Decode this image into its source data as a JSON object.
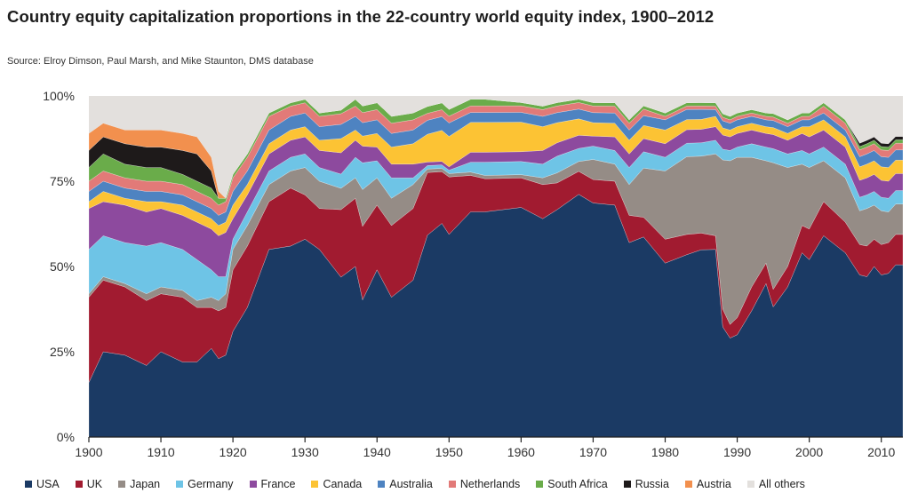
{
  "title": "Country equity capitalization proportions in the 22-country world equity index, 1900–2012",
  "source": "Source: Elroy Dimson, Paul Marsh, and Mike Staunton, DMS database",
  "chart_data": {
    "type": "area",
    "stacked": true,
    "title": "Country equity capitalization proportions in the 22-country world equity index, 1900–2012",
    "xlabel": "",
    "ylabel": "",
    "xlim": [
      1900,
      2013
    ],
    "ylim": [
      0,
      100
    ],
    "x_ticks": [
      1900,
      1910,
      1920,
      1930,
      1940,
      1950,
      1960,
      1970,
      1980,
      1990,
      2000,
      2010
    ],
    "x_tick_labels": [
      "1900",
      "1910",
      "1920",
      "1930",
      "1940",
      "1950",
      "1960",
      "1970",
      "1980",
      "1990",
      "2000",
      "2010"
    ],
    "y_ticks": [
      0,
      25,
      50,
      75,
      100
    ],
    "y_tick_labels": [
      "0%",
      "25%",
      "50%",
      "75%",
      "100%"
    ],
    "grid": false,
    "legend_position": "bottom",
    "x": [
      1900,
      1902,
      1905,
      1908,
      1910,
      1913,
      1915,
      1917,
      1918,
      1919,
      1920,
      1922,
      1925,
      1928,
      1930,
      1932,
      1935,
      1937,
      1938,
      1940,
      1942,
      1945,
      1947,
      1949,
      1950,
      1953,
      1955,
      1960,
      1963,
      1965,
      1968,
      1970,
      1973,
      1975,
      1977,
      1980,
      1983,
      1985,
      1987,
      1988,
      1989,
      1990,
      1992,
      1994,
      1995,
      1997,
      1999,
      2000,
      2002,
      2005,
      2007,
      2008,
      2009,
      2010,
      2011,
      2012,
      2013
    ],
    "series": [
      {
        "name": "USA",
        "color": "#1b3a64",
        "values": [
          16,
          25,
          24,
          21,
          25,
          22,
          22,
          26,
          23,
          24,
          31,
          38,
          55,
          56,
          58,
          55,
          45,
          50,
          41,
          49,
          41,
          46,
          58,
          62,
          60,
          68,
          68,
          70,
          64,
          68,
          74,
          70,
          68,
          57,
          61,
          51,
          54,
          56,
          55,
          31,
          29,
          30,
          37,
          45,
          37,
          44,
          54,
          52,
          59,
          54,
          48,
          47,
          50,
          48,
          48,
          51,
          51
        ]
      },
      {
        "name": "UK",
        "color": "#a11b30",
        "values": [
          25,
          21,
          20,
          19,
          17,
          19,
          16,
          12,
          14,
          14,
          18,
          18,
          14,
          17,
          13,
          12,
          19,
          20,
          22,
          19,
          21,
          21,
          18,
          15,
          17,
          11,
          10,
          9,
          10,
          8,
          7,
          7,
          7,
          8,
          6,
          7,
          6,
          5,
          4,
          5,
          4,
          5,
          7,
          6,
          5,
          6,
          8,
          9,
          10,
          9,
          9,
          9,
          8,
          9,
          9,
          9,
          9
        ]
      },
      {
        "name": "Japan",
        "color": "#958c86",
        "values": [
          1,
          1,
          1,
          2,
          2,
          2,
          2,
          3,
          3,
          4,
          6,
          6,
          5,
          5,
          8,
          8,
          6,
          6,
          11,
          8,
          8,
          7,
          1,
          1,
          1,
          1,
          1,
          1,
          2,
          3,
          3,
          6,
          5,
          9,
          15,
          20,
          23,
          23,
          24,
          42,
          48,
          47,
          38,
          30,
          36,
          29,
          18,
          18,
          12,
          13,
          10,
          11,
          10,
          10,
          9,
          9,
          9
        ]
      },
      {
        "name": "Germany",
        "color": "#6ec4e6",
        "values": [
          13,
          12,
          12,
          14,
          13,
          12,
          12,
          8,
          7,
          5,
          3,
          4,
          4,
          4,
          4,
          4,
          4,
          6,
          8,
          5,
          6,
          2,
          1,
          1,
          1,
          3,
          4,
          4,
          4,
          5,
          4,
          4,
          4,
          5,
          5,
          4,
          4,
          4,
          4,
          3,
          3,
          3,
          4,
          4,
          4,
          4,
          4,
          4,
          4,
          4,
          4,
          4,
          4,
          4,
          4,
          4,
          4
        ]
      },
      {
        "name": "France",
        "color": "#8d4a9e",
        "values": [
          12,
          10,
          11,
          10,
          10,
          10,
          11,
          12,
          12,
          13,
          6,
          5,
          5,
          5,
          5,
          5,
          6,
          5,
          5,
          4,
          4,
          4,
          1,
          1,
          1,
          3,
          3,
          3,
          4,
          4,
          4,
          3,
          4,
          4,
          4,
          4,
          4,
          4,
          4,
          4,
          4,
          4,
          4,
          4,
          4,
          4,
          5,
          5,
          5,
          5,
          5,
          5,
          5,
          5,
          5,
          5,
          5
        ]
      },
      {
        "name": "Canada",
        "color": "#fcc334",
        "values": [
          2,
          3,
          2,
          3,
          2,
          3,
          3,
          3,
          3,
          3,
          4,
          3,
          3,
          3,
          3,
          3,
          4,
          3,
          3,
          4,
          5,
          6,
          8,
          9,
          9,
          9,
          9,
          9,
          7,
          6,
          5,
          4,
          4,
          4,
          4,
          4,
          3,
          3,
          3,
          2,
          2,
          2,
          2,
          2,
          2,
          2,
          2,
          3,
          3,
          3,
          4,
          4,
          4,
          4,
          4,
          4,
          4
        ]
      },
      {
        "name": "Australia",
        "color": "#4e83c1",
        "values": [
          3,
          3,
          3,
          3,
          3,
          3,
          3,
          3,
          3,
          3,
          4,
          4,
          4,
          4,
          4,
          4,
          4,
          4,
          4,
          4,
          4,
          4,
          4,
          4,
          4,
          3,
          3,
          3,
          3,
          3,
          3,
          3,
          3,
          3,
          3,
          3,
          3,
          3,
          2,
          2,
          2,
          2,
          2,
          2,
          2,
          2,
          2,
          2,
          2,
          2,
          3,
          3,
          3,
          3,
          3,
          3,
          3
        ]
      },
      {
        "name": "Netherlands",
        "color": "#e27a78",
        "values": [
          3,
          3,
          3,
          3,
          3,
          3,
          3,
          3,
          3,
          3,
          4,
          4,
          4,
          3,
          3,
          3,
          3,
          3,
          3,
          3,
          3,
          3,
          2,
          2,
          2,
          2,
          2,
          2,
          2,
          2,
          2,
          2,
          2,
          2,
          2,
          1,
          1,
          1,
          1,
          1,
          1,
          1,
          1,
          1,
          1,
          1,
          1,
          1,
          2,
          2,
          2,
          2,
          2,
          2,
          2,
          2,
          2
        ]
      },
      {
        "name": "South Africa",
        "color": "#6aac4a",
        "values": [
          4,
          5,
          4,
          4,
          4,
          3,
          3,
          3,
          2,
          1,
          1,
          1,
          1,
          1,
          1,
          1,
          1,
          2,
          2,
          2,
          2,
          2,
          2,
          2,
          2,
          2,
          2,
          1,
          1,
          1,
          1,
          1,
          1,
          1,
          1,
          1,
          1,
          1,
          1,
          1,
          1,
          1,
          1,
          1,
          1,
          1,
          1,
          1,
          1,
          1,
          1,
          1,
          1,
          1,
          1,
          1,
          1
        ]
      },
      {
        "name": "Russia",
        "color": "#1e1a1a",
        "values": [
          5,
          5,
          6,
          6,
          6,
          7,
          8,
          5,
          0,
          0,
          0,
          0,
          0,
          0,
          0,
          0,
          0,
          0,
          0,
          0,
          0,
          0,
          0,
          0,
          0,
          0,
          0,
          0,
          0,
          0,
          0,
          0,
          0,
          0,
          0,
          0,
          0,
          0,
          0,
          0,
          0,
          0,
          0,
          0,
          0,
          0,
          0,
          0,
          0,
          0,
          1,
          1,
          1,
          1,
          1,
          1,
          1
        ]
      },
      {
        "name": "Austria",
        "color": "#f2904e",
        "values": [
          5,
          4,
          4,
          5,
          5,
          5,
          5,
          4,
          2,
          0,
          0,
          0,
          0,
          0,
          0,
          0,
          0,
          0,
          0,
          0,
          0,
          0,
          0,
          0,
          0,
          0,
          0,
          0,
          0,
          0,
          0,
          0,
          0,
          0,
          0,
          0,
          0,
          0,
          0,
          0,
          0,
          0,
          0,
          0,
          0,
          0,
          0,
          0,
          0,
          0,
          0,
          0,
          0,
          0,
          0,
          0,
          0
        ]
      },
      {
        "name": "All others",
        "color": "#e3e0dd",
        "values": [
          11,
          8,
          10,
          10,
          10,
          11,
          12,
          18,
          28,
          30,
          23,
          17,
          5,
          2,
          1,
          5,
          4,
          1,
          3,
          2,
          6,
          5,
          3,
          2,
          4,
          1,
          1,
          2,
          3,
          2,
          1,
          2,
          2,
          7,
          3,
          5,
          2,
          2,
          2,
          5,
          6,
          5,
          4,
          5,
          5,
          7,
          5,
          5,
          2,
          7,
          14,
          13,
          12,
          14,
          14,
          12,
          12
        ]
      }
    ]
  }
}
